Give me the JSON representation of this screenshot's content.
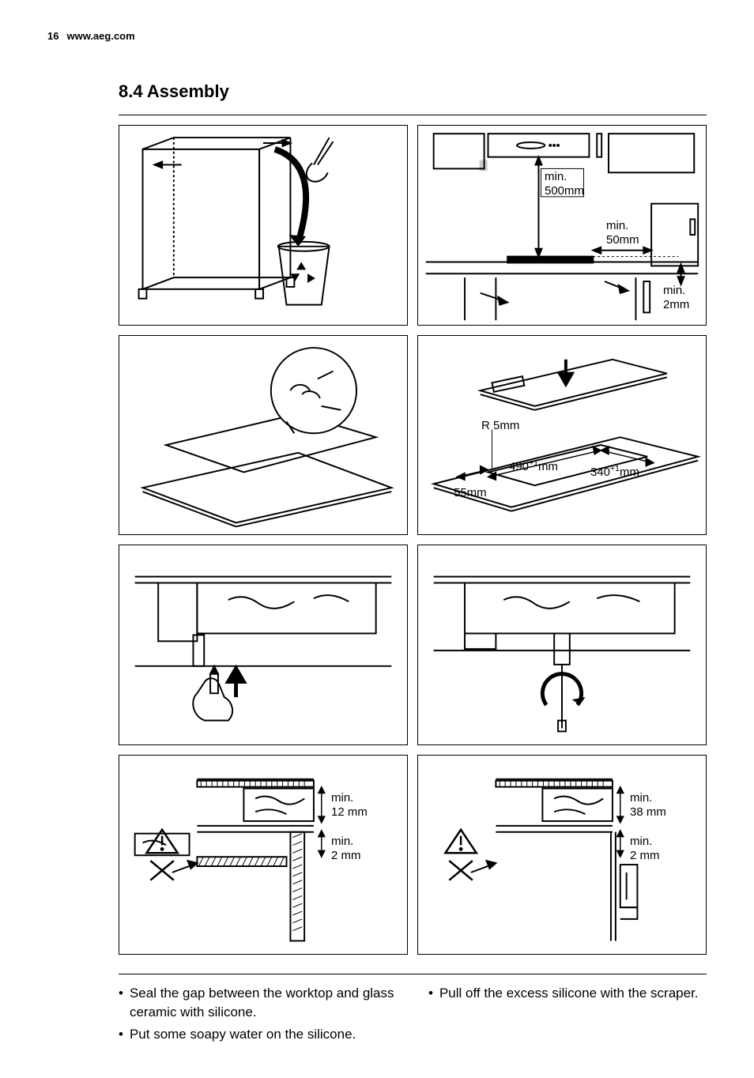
{
  "header": {
    "page_number": "16",
    "website": "www.aeg.com"
  },
  "section": {
    "number": "8.4",
    "title": "Assembly"
  },
  "panels": {
    "p2": {
      "label1": "min.\n500mm",
      "label2": "min.\n50mm",
      "label3": "min.\n2mm"
    },
    "p4": {
      "radius": "R 5mm",
      "width": "490",
      "width_sup": "+1",
      "width_unit": "mm",
      "depth": "340",
      "depth_sup": "+1",
      "depth_unit": "mm",
      "edge": "55mm"
    },
    "p7": {
      "top": "min.\n12 mm",
      "bottom": "min.\n2 mm"
    },
    "p8": {
      "top": "min.\n38 mm",
      "bottom": "min.\n2 mm"
    }
  },
  "footer": {
    "left": [
      "Seal the gap between the worktop and glass ceramic with silicone.",
      "Put some soapy water on the silicone."
    ],
    "right": [
      "Pull off the excess silicone with the scraper."
    ]
  },
  "colors": {
    "stroke": "#000000",
    "background": "#ffffff"
  }
}
